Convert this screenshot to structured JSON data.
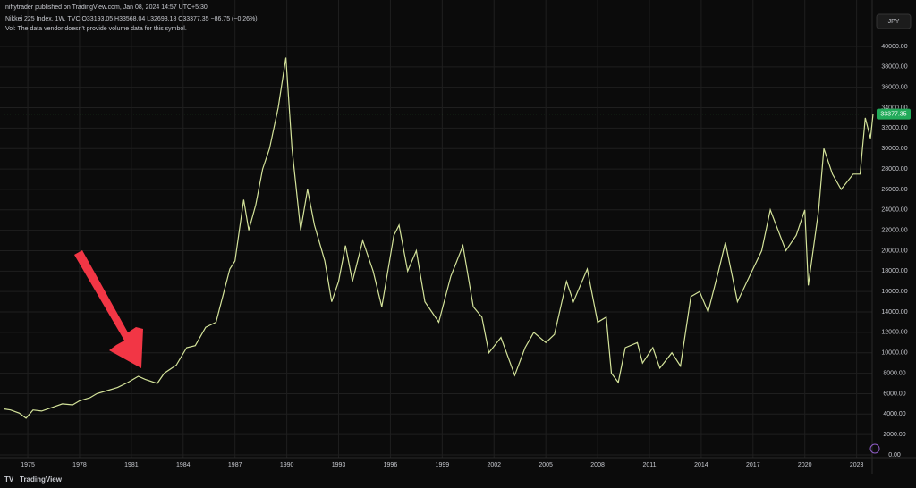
{
  "header": {
    "publisher": "niftytrader published on TradingView.com, Jan 08, 2024 14:57 UTC+5:30",
    "symbol_line": "Nikkei 225 Index, 1W, TVC O33193.05 H33568.04 L32693.18 C33377.35 −86.75 (−0.26%)",
    "volume_note": "Vol: The data vendor doesn't provide volume data for this symbol.",
    "currency": "JPY",
    "price_label": "33377.35",
    "footer": "TradingView"
  },
  "chart_data": {
    "type": "line",
    "x": [
      1973.65,
      1974.0,
      1974.5,
      1974.9,
      1975.3,
      1975.8,
      1976.5,
      1977.0,
      1977.6,
      1978.0,
      1978.6,
      1979.0,
      1979.6,
      1980.2,
      1980.8,
      1981.4,
      1981.8,
      1982.5,
      1982.9,
      1983.6,
      1984.2,
      1984.7,
      1985.3,
      1985.9,
      1986.3,
      1986.7,
      1987.0,
      1987.5,
      1987.8,
      1988.2,
      1988.6,
      1989.0,
      1989.5,
      1989.95,
      1990.3,
      1990.8,
      1991.2,
      1991.6,
      1992.2,
      1992.6,
      1993.0,
      1993.4,
      1993.8,
      1994.4,
      1995.0,
      1995.5,
      1996.2,
      1996.5,
      1997.0,
      1997.5,
      1998.0,
      1998.8,
      1999.5,
      2000.2,
      2000.8,
      2001.3,
      2001.7,
      2002.4,
      2003.2,
      2003.8,
      2004.3,
      2005.0,
      2005.5,
      2006.2,
      2006.6,
      2007.4,
      2008.0,
      2008.5,
      2008.8,
      2009.2,
      2009.6,
      2010.3,
      2010.6,
      2011.2,
      2011.6,
      2012.3,
      2012.8,
      2013.4,
      2013.9,
      2014.4,
      2015.0,
      2015.4,
      2016.1,
      2016.8,
      2017.5,
      2018.0,
      2018.9,
      2019.5,
      2020.0,
      2020.2,
      2020.8,
      2021.1,
      2021.6,
      2022.1,
      2022.8,
      2023.2,
      2023.5,
      2023.8,
      2023.95
    ],
    "series": [
      {
        "name": "Nikkei 225 Index",
        "color": "#d4e39a",
        "values": [
          4500,
          4400,
          4100,
          3600,
          4400,
          4300,
          4700,
          5000,
          4900,
          5300,
          5600,
          6000,
          6300,
          6600,
          7100,
          7700,
          7400,
          7000,
          8000,
          8800,
          10500,
          10700,
          12500,
          13000,
          15600,
          18200,
          19000,
          25000,
          22000,
          24500,
          28000,
          30000,
          34000,
          38900,
          30000,
          22000,
          26000,
          22500,
          19000,
          15000,
          17000,
          20500,
          17000,
          21000,
          18000,
          14500,
          21500,
          22500,
          18000,
          20000,
          15000,
          13000,
          17500,
          20500,
          14500,
          13500,
          10000,
          11500,
          7800,
          10500,
          12000,
          11000,
          11800,
          17000,
          15000,
          18200,
          13000,
          13500,
          8000,
          7100,
          10500,
          11000,
          9000,
          10500,
          8500,
          10000,
          8700,
          15500,
          16000,
          14000,
          18000,
          20800,
          15000,
          17500,
          20000,
          24000,
          20000,
          21500,
          24000,
          16600,
          24000,
          30000,
          27500,
          26000,
          27500,
          27500,
          33000,
          31000,
          33377.35
        ]
      }
    ],
    "xlim": [
      1973.65,
      2023.9
    ],
    "xticks": [
      1975,
      1978,
      1981,
      1984,
      1987,
      1990,
      1993,
      1996,
      1999,
      2002,
      2005,
      2008,
      2011,
      2014,
      2017,
      2020,
      2023
    ],
    "ylim": [
      0,
      43200
    ],
    "yticks": [
      {
        "value": 0,
        "label": "0.00"
      },
      {
        "value": 2000,
        "label": "2000.00"
      },
      {
        "value": 4000,
        "label": "4000.00"
      },
      {
        "value": 6000,
        "label": "6000.00"
      },
      {
        "value": 8000,
        "label": "8000.00"
      },
      {
        "value": 10000,
        "label": "10000.00"
      },
      {
        "value": 12000,
        "label": "12000.00"
      },
      {
        "value": 14000,
        "label": "14000.00"
      },
      {
        "value": 16000,
        "label": "16000.00"
      },
      {
        "value": 18000,
        "label": "18000.00"
      },
      {
        "value": 20000,
        "label": "20000.00"
      },
      {
        "value": 22000,
        "label": "22000.00"
      },
      {
        "value": 24000,
        "label": "24000.00"
      },
      {
        "value": 26000,
        "label": "26000.00"
      },
      {
        "value": 28000,
        "label": "28000.00"
      },
      {
        "value": 30000,
        "label": "30000.00"
      },
      {
        "value": 32000,
        "label": "32000.00"
      },
      {
        "value": 34000,
        "label": "34000.00"
      },
      {
        "value": 36000,
        "label": "36000.00"
      },
      {
        "value": 38000,
        "label": "38000.00"
      },
      {
        "value": 40000,
        "label": "40000.00"
      }
    ],
    "grid": true
  }
}
